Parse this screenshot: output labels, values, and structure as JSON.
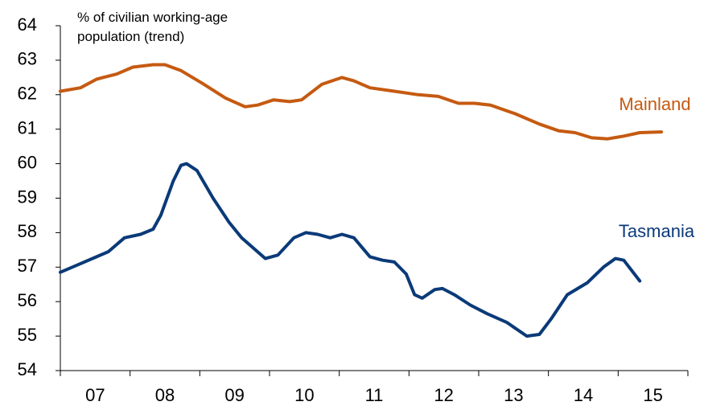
{
  "chart_data": {
    "type": "line",
    "y_label": "% of civilian working-age population (trend)",
    "ylim": [
      54,
      64
    ],
    "yticks": [
      54,
      55,
      56,
      57,
      58,
      59,
      60,
      61,
      62,
      63,
      64
    ],
    "xlim": [
      7,
      16
    ],
    "x_tick_marks": [
      7,
      8,
      9,
      10,
      11,
      12,
      13,
      14,
      15,
      16
    ],
    "x_tick_labels": [
      {
        "value": 7.5,
        "label": "07"
      },
      {
        "value": 8.5,
        "label": "08"
      },
      {
        "value": 9.5,
        "label": "09"
      },
      {
        "value": 10.5,
        "label": "10"
      },
      {
        "value": 11.5,
        "label": "11"
      },
      {
        "value": 12.5,
        "label": "12"
      },
      {
        "value": 13.5,
        "label": "13"
      },
      {
        "value": 14.5,
        "label": "14"
      },
      {
        "value": 15.5,
        "label": "15"
      }
    ],
    "series": [
      {
        "name": "Mainland",
        "color": "#c55a11",
        "x": [
          7,
          7.29,
          7.52,
          7.81,
          8.04,
          8.33,
          8.5,
          8.73,
          9.02,
          9.37,
          9.65,
          9.83,
          10.06,
          10.29,
          10.46,
          10.75,
          11.04,
          11.21,
          11.44,
          11.79,
          12.13,
          12.42,
          12.71,
          12.94,
          13.17,
          13.52,
          13.87,
          14.15,
          14.38,
          14.62,
          14.85,
          15.08,
          15.31,
          15.62
        ],
        "values": [
          62.1,
          62.2,
          62.45,
          62.6,
          62.8,
          62.87,
          62.87,
          62.7,
          62.35,
          61.9,
          61.65,
          61.7,
          61.85,
          61.8,
          61.85,
          62.3,
          62.5,
          62.4,
          62.2,
          62.1,
          62.0,
          61.95,
          61.75,
          61.75,
          61.7,
          61.45,
          61.15,
          60.95,
          60.9,
          60.75,
          60.72,
          60.8,
          60.9,
          60.92
        ]
      },
      {
        "name": "Tasmania",
        "color": "#0b3a78",
        "x": [
          7,
          7.23,
          7.52,
          7.69,
          7.92,
          8.15,
          8.33,
          8.44,
          8.62,
          8.73,
          8.81,
          8.96,
          9.19,
          9.42,
          9.6,
          9.77,
          9.94,
          10.12,
          10.35,
          10.52,
          10.69,
          10.87,
          11.04,
          11.21,
          11.44,
          11.62,
          11.79,
          11.96,
          12.08,
          12.19,
          12.37,
          12.48,
          12.65,
          12.88,
          13.12,
          13.4,
          13.69,
          13.87,
          14.04,
          14.27,
          14.56,
          14.79,
          14.96,
          15.08,
          15.31
        ],
        "values": [
          56.85,
          57.05,
          57.3,
          57.45,
          57.85,
          57.95,
          58.1,
          58.5,
          59.5,
          59.95,
          60.0,
          59.8,
          59.0,
          58.3,
          57.85,
          57.55,
          57.25,
          57.35,
          57.85,
          58.0,
          57.95,
          57.85,
          57.95,
          57.85,
          57.3,
          57.2,
          57.15,
          56.8,
          56.2,
          56.1,
          56.35,
          56.38,
          56.2,
          55.9,
          55.65,
          55.4,
          55.0,
          55.05,
          55.5,
          56.2,
          56.55,
          57.0,
          57.25,
          57.2,
          56.6
        ]
      }
    ]
  }
}
